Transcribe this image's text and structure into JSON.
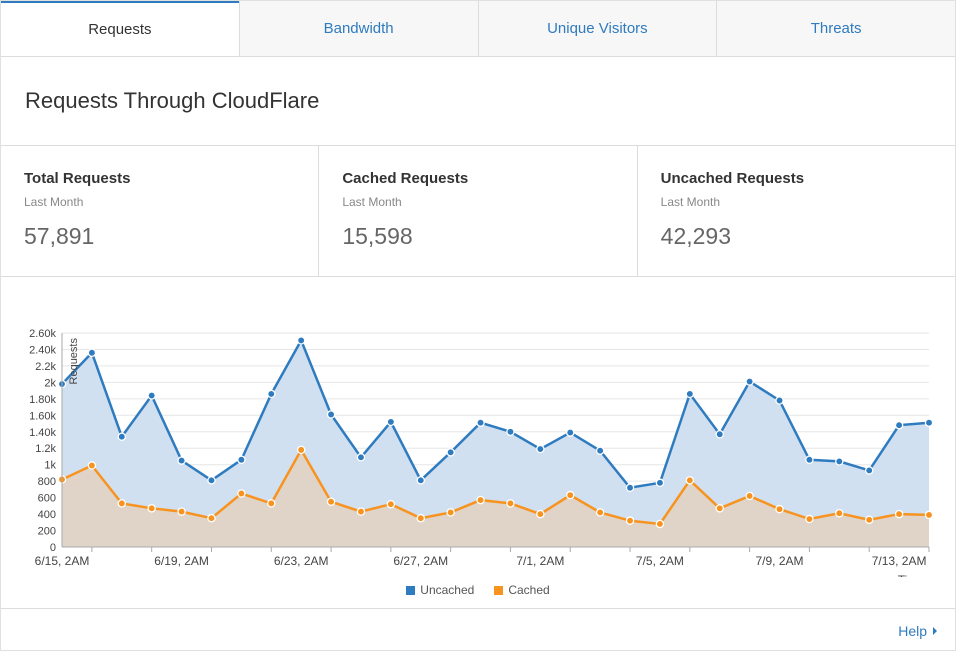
{
  "tabs": [
    {
      "label": "Requests",
      "active": true
    },
    {
      "label": "Bandwidth",
      "active": false
    },
    {
      "label": "Unique Visitors",
      "active": false
    },
    {
      "label": "Threats",
      "active": false
    }
  ],
  "title": "Requests Through CloudFlare",
  "stats": [
    {
      "label": "Total Requests",
      "sub": "Last Month",
      "value": "57,891"
    },
    {
      "label": "Cached Requests",
      "sub": "Last Month",
      "value": "15,598"
    },
    {
      "label": "Uncached Requests",
      "sub": "Last Month",
      "value": "42,293"
    }
  ],
  "legend": [
    {
      "label": "Uncached",
      "color": "#2f7bbf"
    },
    {
      "label": "Cached",
      "color": "#f7931e"
    }
  ],
  "help": {
    "label": "Help"
  },
  "chart_data": {
    "type": "area",
    "ylabel": "Requests",
    "xlabel": "Time",
    "ylim": [
      0,
      2600
    ],
    "yticks": [
      0,
      200,
      400,
      600,
      800,
      1000,
      1200,
      1400,
      1600,
      1800,
      2000,
      2200,
      2400,
      2600
    ],
    "ytick_labels": [
      "0",
      "200",
      "400",
      "600",
      "800",
      "1k",
      "1.2k",
      "1.40k",
      "1.60k",
      "1.80k",
      "2k",
      "2.2k",
      "2.40k",
      "2.60k"
    ],
    "x_labels": [
      {
        "index": 0,
        "label": "6/15, 2AM"
      },
      {
        "index": 4,
        "label": "6/19, 2AM"
      },
      {
        "index": 8,
        "label": "6/23, 2AM"
      },
      {
        "index": 12,
        "label": "6/27, 2AM"
      },
      {
        "index": 16,
        "label": "7/1, 2AM"
      },
      {
        "index": 20,
        "label": "7/5, 2AM"
      },
      {
        "index": 24,
        "label": "7/9, 2AM"
      },
      {
        "index": 28,
        "label": "7/13, 2AM"
      }
    ],
    "grid": true,
    "legend_position": "bottom",
    "series": [
      {
        "name": "Uncached",
        "color": "#2f7bbf",
        "fill": "#d0e0f0",
        "values": [
          1980,
          2360,
          1340,
          1840,
          1050,
          810,
          1060,
          1860,
          2510,
          1610,
          1090,
          1520,
          810,
          1150,
          1510,
          1400,
          1190,
          1390,
          1170,
          720,
          780,
          1860,
          1370,
          2010,
          1780,
          1060,
          1040,
          930,
          1480,
          1510
        ]
      },
      {
        "name": "Cached",
        "color": "#f7931e",
        "fill": "#e0d4c8",
        "values": [
          820,
          990,
          530,
          470,
          430,
          350,
          650,
          530,
          1180,
          550,
          430,
          520,
          350,
          420,
          570,
          530,
          400,
          630,
          420,
          320,
          280,
          810,
          470,
          620,
          460,
          340,
          410,
          330,
          400,
          390
        ]
      }
    ]
  }
}
